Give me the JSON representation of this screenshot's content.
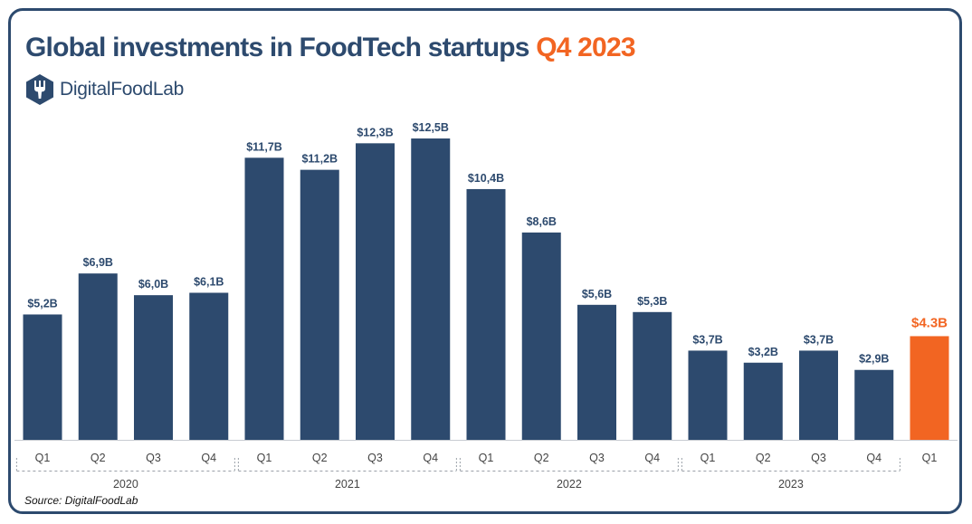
{
  "header": {
    "title_main": "Global investments in FoodTech startups",
    "title_accent": "Q4 2023",
    "brand_name": "DigitalFoodLab",
    "brand_logo_icon": "fork-hexagon-icon"
  },
  "source": "Source: DigitalFoodLab",
  "colors": {
    "bar": "#2d4a6e",
    "highlight": "#f26522",
    "text": "#2d4a6e",
    "axis_text": "#444444"
  },
  "chart_data": {
    "type": "bar",
    "categories": [
      "Q1",
      "Q2",
      "Q3",
      "Q4",
      "Q1",
      "Q2",
      "Q3",
      "Q4",
      "Q1",
      "Q2",
      "Q3",
      "Q4",
      "Q1",
      "Q2",
      "Q3",
      "Q4",
      "Q1"
    ],
    "groups": [
      {
        "label": "2020",
        "count": 4
      },
      {
        "label": "2021",
        "count": 4
      },
      {
        "label": "2022",
        "count": 4
      },
      {
        "label": "2023",
        "count": 4
      },
      {
        "label": "",
        "count": 1
      }
    ],
    "values": [
      5.2,
      6.9,
      6.0,
      6.1,
      11.7,
      11.2,
      12.3,
      12.5,
      10.4,
      8.6,
      5.6,
      5.3,
      3.7,
      3.2,
      3.7,
      2.9,
      4.3
    ],
    "data_labels": [
      "$5,2B",
      "$6,9B",
      "$6,0B",
      "$6,1B",
      "$11,7B",
      "$11,2B",
      "$12,3B",
      "$12,5B",
      "$10,4B",
      "$8,6B",
      "$5,6B",
      "$5,3B",
      "$3,7B",
      "$3,2B",
      "$3,7B",
      "$2,9B",
      "$4.3B"
    ],
    "highlight_index": 16,
    "unit": "$B",
    "ylim": [
      0,
      12.5
    ],
    "grid": false,
    "legend": "none"
  }
}
